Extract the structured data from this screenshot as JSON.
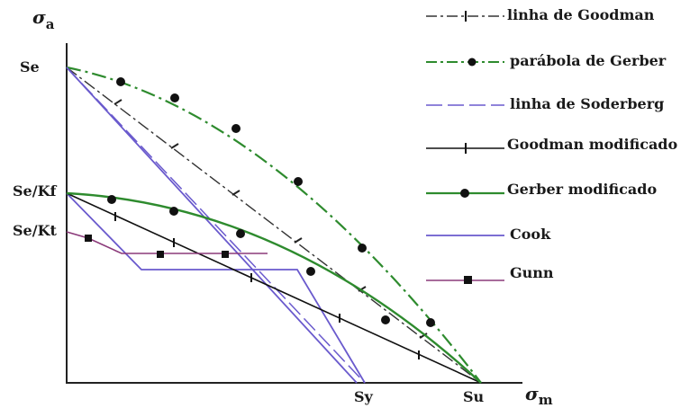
{
  "axes": {
    "y_symbol": "σ",
    "y_subscript": "a",
    "x_symbol": "σ",
    "x_subscript": "m",
    "y_ticks": [
      "Se",
      "Se/Kf",
      "Se/Kt"
    ],
    "x_ticks": [
      "Sy",
      "Su"
    ]
  },
  "legend": [
    {
      "label": "linha de Goodman",
      "color": "#333333",
      "style": "dashdot",
      "marker": "tick"
    },
    {
      "label": "parábola de Gerber",
      "color": "#2e8b2e",
      "style": "dashdot",
      "marker": "dot"
    },
    {
      "label": "linha de Soderberg",
      "color": "#6a5acd",
      "style": "dashed",
      "marker": "none"
    },
    {
      "label": "Goodman modificado",
      "color": "#222222",
      "style": "solid",
      "marker": "tick"
    },
    {
      "label": "Gerber modificado",
      "color": "#2e8b2e",
      "style": "solid",
      "marker": "dot"
    },
    {
      "label": "Cook",
      "color": "#6a5acd",
      "style": "solid",
      "marker": "none"
    },
    {
      "label": "Gunn",
      "color": "#8b3a7a",
      "style": "solid",
      "marker": "square"
    }
  ]
}
